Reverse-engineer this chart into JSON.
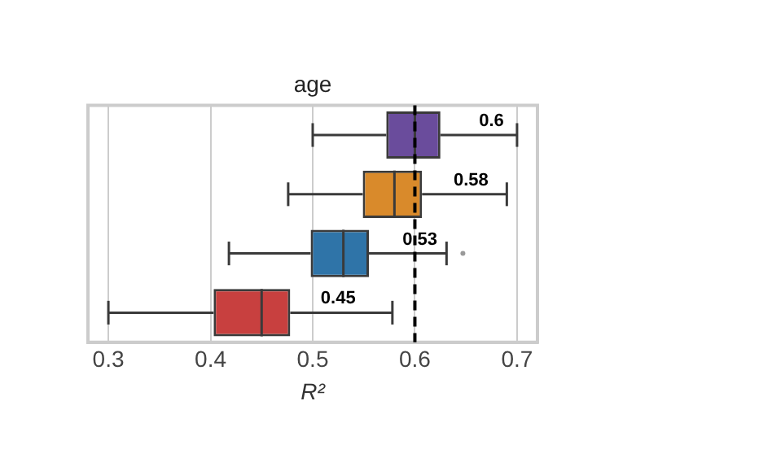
{
  "chart_data": {
    "type": "box",
    "title": "age",
    "xlabel": "R²",
    "orientation": "horizontal",
    "categories": [
      null,
      null,
      null,
      null
    ],
    "series": [
      {
        "color": "#6a4c9c",
        "boxes": [
          {
            "low": 0.5,
            "q1": 0.572,
            "median": 0.6,
            "q3": 0.625,
            "high": 0.7
          },
          null,
          null,
          null
        ],
        "value_labels": [
          "0.6",
          null,
          null,
          null
        ]
      },
      {
        "color": "#d98a2b",
        "boxes": [
          null,
          {
            "low": 0.476,
            "q1": 0.549,
            "median": 0.58,
            "q3": 0.607,
            "high": 0.69
          },
          null,
          null
        ],
        "value_labels": [
          null,
          "0.58",
          null,
          null
        ]
      },
      {
        "color": "#2f74a8",
        "boxes": [
          null,
          null,
          {
            "low": 0.418,
            "q1": 0.498,
            "median": 0.53,
            "q3": 0.555,
            "high": 0.631,
            "outliers": [
              0.647
            ]
          },
          null
        ],
        "value_labels": [
          null,
          null,
          "0.53",
          null
        ]
      },
      {
        "color": "#c8403f",
        "boxes": [
          null,
          null,
          null,
          {
            "low": 0.3,
            "q1": 0.403,
            "median": 0.45,
            "q3": 0.478,
            "high": 0.578
          }
        ],
        "value_labels": [
          null,
          null,
          null,
          "0.45"
        ]
      }
    ],
    "xlim": [
      0.28,
      0.72
    ],
    "xticks": [
      0.3,
      0.4,
      0.5,
      0.6,
      0.7
    ],
    "grid": "x",
    "tick_labels": "x",
    "ref_lines": [
      {
        "axis": "x",
        "value": 0.6,
        "color": "#000000",
        "line_style": "dashed"
      }
    ]
  }
}
